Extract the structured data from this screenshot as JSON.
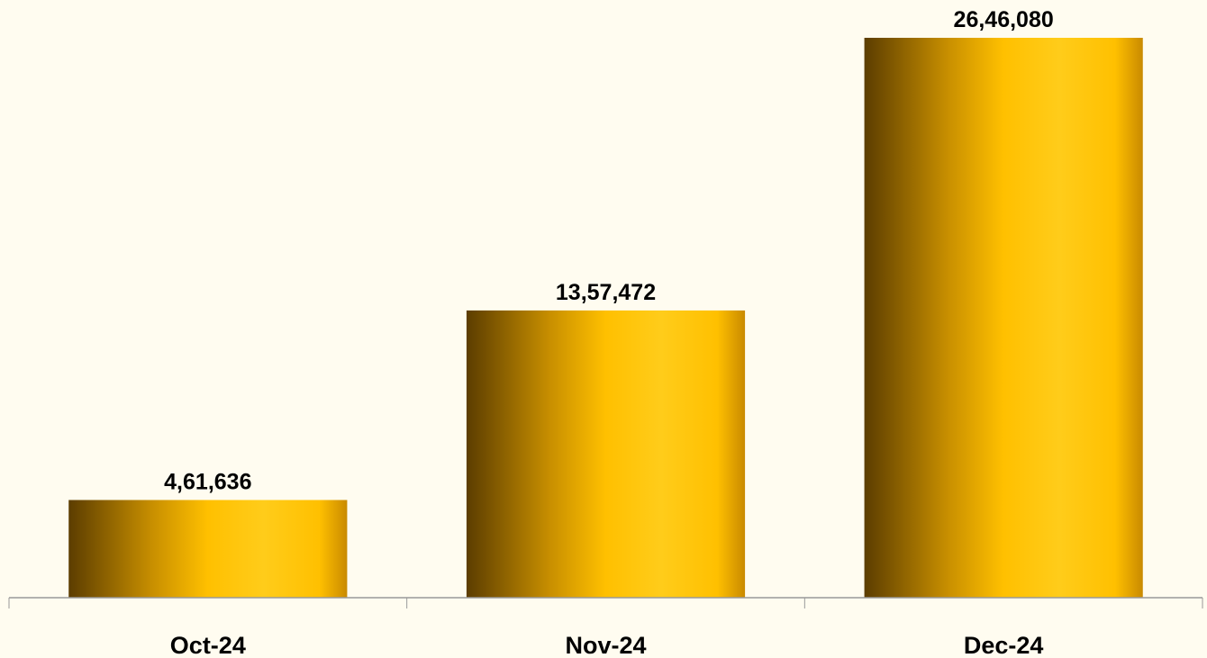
{
  "chart_data": {
    "type": "bar",
    "categories": [
      "Oct-24",
      "Nov-24",
      "Dec-24"
    ],
    "values": [
      461636,
      1357472,
      2646080
    ],
    "value_labels": [
      "4,61,636",
      "13,57,472",
      "26,46,080"
    ],
    "color": "#ffc000"
  }
}
